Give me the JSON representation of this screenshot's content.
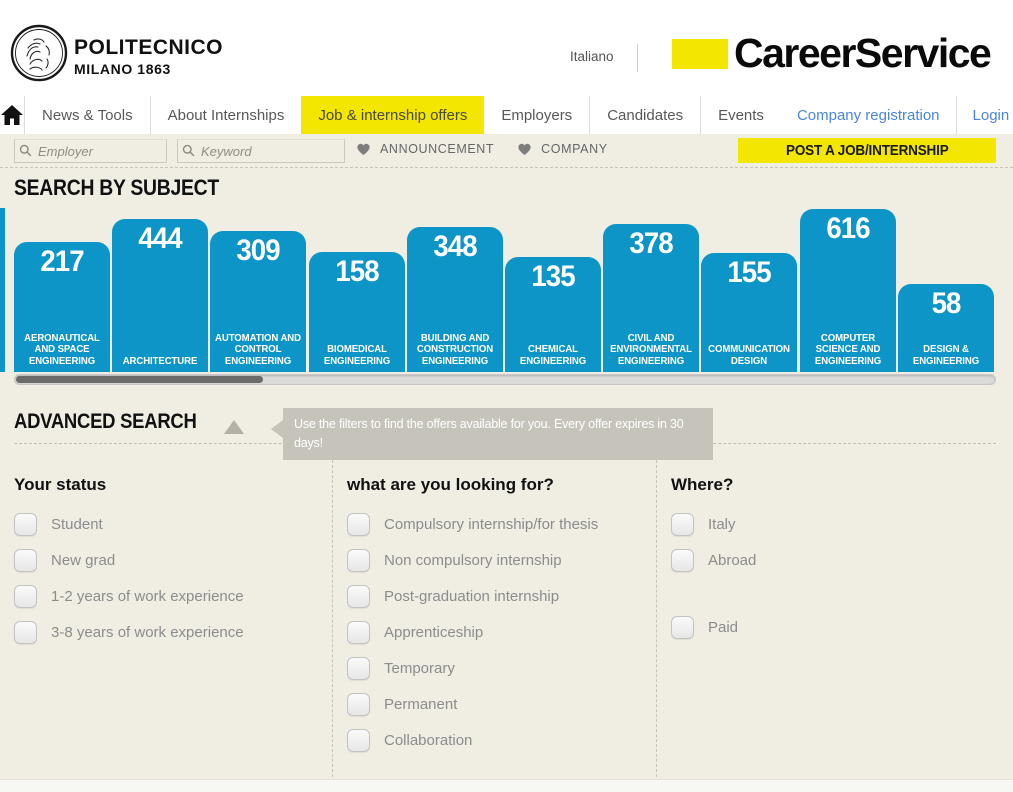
{
  "header": {
    "logo": {
      "line1": "POLITECNICO",
      "line2": "MILANO 1863"
    },
    "language_link": "Italiano",
    "brand": "CareerService"
  },
  "nav": {
    "home_icon": "house-icon",
    "items": [
      {
        "label": "News & Tools",
        "active": false
      },
      {
        "label": "About Internships",
        "active": false
      },
      {
        "label": "Job & internship offers",
        "active": true
      },
      {
        "label": "Employers",
        "active": false
      },
      {
        "label": "Candidates",
        "active": false
      },
      {
        "label": "Events",
        "active": false
      }
    ],
    "right_links": [
      "Company registration",
      "Login"
    ]
  },
  "search_bar": {
    "employer_placeholder": "Employer",
    "keyword_placeholder": "Keyword",
    "favorites": [
      "ANNOUNCEMENT",
      "COMPANY"
    ],
    "post_button": "POST A JOB/INTERNSHIP"
  },
  "subject_section": {
    "title": "SEARCH BY SUBJECT"
  },
  "chart_data": {
    "type": "bar",
    "title": "SEARCH BY SUBJECT",
    "categories": [
      "AERONAUTICAL AND SPACE ENGINEERING",
      "ARCHITECTURE",
      "AUTOMATION AND CONTROL ENGINEERING",
      "BIOMEDICAL ENGINEERING",
      "BUILDING AND CONSTRUCTION ENGINEERING",
      "CHEMICAL ENGINEERING",
      "CIVIL AND ENVIRONMENTAL ENGINEERING",
      "COMMUNICATION DESIGN",
      "COMPUTER SCIENCE AND ENGINEERING",
      "DESIGN & ENGINEERING"
    ],
    "values": [
      217,
      444,
      309,
      158,
      348,
      135,
      378,
      155,
      616,
      58
    ],
    "layout": {
      "scale": "logarithmic",
      "value_labels": "inside-top",
      "category_labels": "inside-bottom",
      "horizontal_scrollbar": true,
      "clipped_bar_on_left_edge": true
    }
  },
  "advanced_search": {
    "title": "ADVANCED SEARCH",
    "collapse_icon": "triangle-up-icon",
    "tooltip": "Use the filters to find the offers available for you. Every offer expires in 30 days!",
    "columns": [
      {
        "heading": "Your status",
        "options": [
          "Student",
          "New grad",
          "1-2 years of work experience",
          "3-8 years of work experience"
        ]
      },
      {
        "heading": "what are you looking for?",
        "options": [
          "Compulsory internship/for thesis",
          "Non compulsory internship",
          "Post-graduation internship",
          "Apprenticeship",
          "Temporary",
          "Permanent",
          "Collaboration"
        ]
      },
      {
        "heading": "Where?",
        "options": [
          "Italy",
          "Abroad"
        ],
        "options_separated": [
          "Paid"
        ]
      }
    ]
  },
  "icons": {
    "home": "house-icon",
    "search": "magnifier-icon",
    "favorite": "heart-icon",
    "collapse": "triangle-up-icon",
    "logo": "politecnico-seal-icon"
  },
  "colors": {
    "accent_yellow": "#f3e600",
    "bar_blue": "#0e95c7",
    "link_blue": "#4a86d8",
    "background_beige": "#f0ede3",
    "tooltip_gray": "#c6c4ba",
    "bar_text": "#ffffff"
  }
}
